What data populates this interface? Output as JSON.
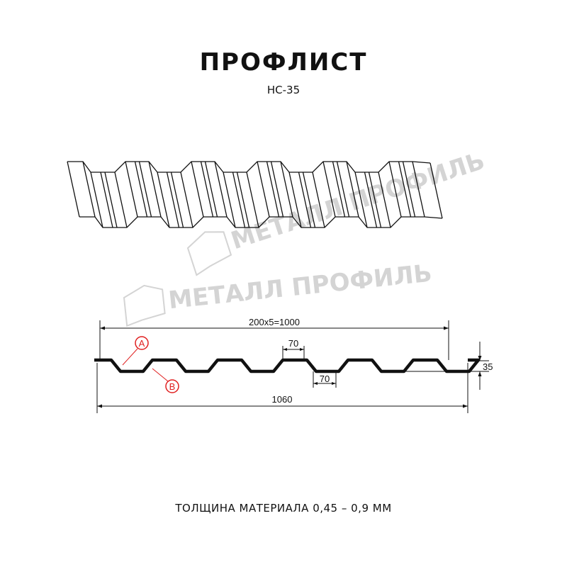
{
  "title": "ПРОФЛИСТ",
  "subtitle": "НС-35",
  "watermark": "МЕТАЛЛ ПРОФИЛЬ",
  "dimensions": {
    "effective_width": "200x5=1000",
    "full_width": "1060",
    "height": "35",
    "top_flat": "70",
    "bottom_flat": "70"
  },
  "markers": {
    "a": "A",
    "b": "B"
  },
  "footer": "ТОЛЩИНА МАТЕРИАЛА 0,45 – 0,9 ММ",
  "colors": {
    "line": "#111111",
    "marker": "#e02020",
    "watermark": "#d4d4d4"
  }
}
